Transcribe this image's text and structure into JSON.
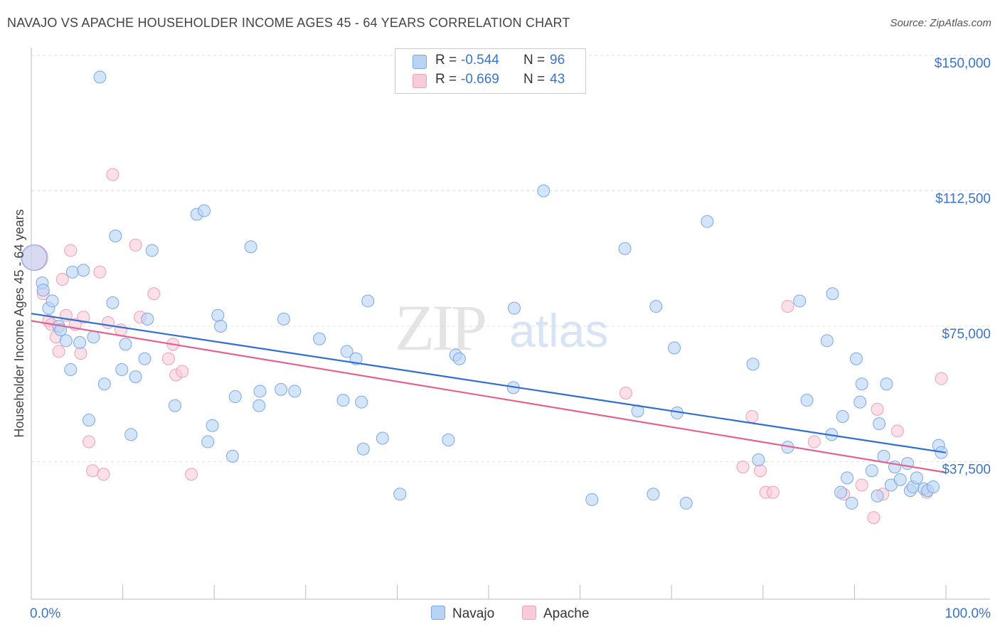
{
  "header": {
    "title": "NAVAJO VS APACHE HOUSEHOLDER INCOME AGES 45 - 64 YEARS CORRELATION CHART",
    "source": "Source: ZipAtlas.com"
  },
  "legend": {
    "rows": [
      {
        "r_label": "R =",
        "r_value": "-0.544",
        "n_label": "N =",
        "n_value": "96",
        "color": "#6fa3e8"
      },
      {
        "r_label": "R =",
        "r_value": "-0.669",
        "n_label": "N =",
        "n_value": "43",
        "color": "#f19bb7"
      }
    ]
  },
  "colors": {
    "navajo_fill": "#b9d3f5",
    "navajo_stroke": "#7aa8e6",
    "navajo_line": "#2f6fd0",
    "apache_fill": "#f9cbd9",
    "apache_stroke": "#ee9fb9",
    "apache_line": "#e4628f",
    "axis_text": "#3a74c9",
    "grid": "#e1e1e1"
  },
  "chart_data": {
    "type": "scatter",
    "title": "NAVAJO VS APACHE HOUSEHOLDER INCOME AGES 45 - 64 YEARS CORRELATION CHART",
    "xlabel": "",
    "ylabel": "Householder Income Ages 45 - 64 years",
    "x_tick_labels": [
      "0.0%",
      "100.0%"
    ],
    "y_tick_labels": [
      "$37,500",
      "$75,000",
      "$112,500",
      "$150,000"
    ],
    "y_ticks": [
      37500,
      75000,
      112500,
      150000
    ],
    "xlim": [
      0,
      100
    ],
    "ylim": [
      0,
      152000
    ],
    "grid": true,
    "legend_position": "top-center",
    "watermark": "ZIPatlas",
    "series": [
      {
        "name": "Navajo",
        "trend": {
          "x": [
            0,
            100
          ],
          "y": [
            78500,
            40000
          ]
        },
        "points": [
          [
            0.3,
            94000
          ],
          [
            1.2,
            87000
          ],
          [
            1.3,
            85000
          ],
          [
            1.9,
            80000
          ],
          [
            2.3,
            82000
          ],
          [
            3.0,
            75000
          ],
          [
            3.2,
            74000
          ],
          [
            3.8,
            71000
          ],
          [
            4.3,
            63000
          ],
          [
            4.5,
            90000
          ],
          [
            5.3,
            70500
          ],
          [
            5.7,
            90500
          ],
          [
            6.3,
            49000
          ],
          [
            6.8,
            72000
          ],
          [
            7.5,
            144000
          ],
          [
            8.0,
            59000
          ],
          [
            8.9,
            81500
          ],
          [
            9.2,
            100000
          ],
          [
            9.9,
            63000
          ],
          [
            10.3,
            70000
          ],
          [
            10.9,
            45000
          ],
          [
            11.4,
            61000
          ],
          [
            12.4,
            66000
          ],
          [
            12.7,
            77000
          ],
          [
            13.2,
            96000
          ],
          [
            15.7,
            53000
          ],
          [
            18.1,
            106000
          ],
          [
            18.9,
            107000
          ],
          [
            19.3,
            43000
          ],
          [
            19.8,
            47500
          ],
          [
            20.4,
            78000
          ],
          [
            20.7,
            75000
          ],
          [
            22.0,
            39000
          ],
          [
            22.3,
            55500
          ],
          [
            24.0,
            97000
          ],
          [
            24.9,
            53000
          ],
          [
            25.0,
            57000
          ],
          [
            27.3,
            57500
          ],
          [
            27.6,
            77000
          ],
          [
            28.8,
            57000
          ],
          [
            31.5,
            71500
          ],
          [
            34.1,
            54500
          ],
          [
            34.5,
            68000
          ],
          [
            35.5,
            66000
          ],
          [
            36.1,
            54000
          ],
          [
            36.3,
            41000
          ],
          [
            36.8,
            82000
          ],
          [
            38.4,
            44000
          ],
          [
            40.3,
            28500
          ],
          [
            45.6,
            43500
          ],
          [
            46.4,
            67000
          ],
          [
            46.8,
            66000
          ],
          [
            52.7,
            58000
          ],
          [
            52.8,
            80000
          ],
          [
            56.0,
            112500
          ],
          [
            61.3,
            27000
          ],
          [
            64.9,
            96500
          ],
          [
            66.3,
            51500
          ],
          [
            68.0,
            28500
          ],
          [
            68.3,
            80500
          ],
          [
            70.3,
            69000
          ],
          [
            70.6,
            51000
          ],
          [
            71.6,
            26000
          ],
          [
            73.9,
            104000
          ],
          [
            78.9,
            64500
          ],
          [
            79.5,
            38000
          ],
          [
            82.7,
            41500
          ],
          [
            84.0,
            82000
          ],
          [
            84.8,
            54500
          ],
          [
            87.0,
            71000
          ],
          [
            87.5,
            45000
          ],
          [
            87.6,
            84000
          ],
          [
            88.5,
            29000
          ],
          [
            88.7,
            50000
          ],
          [
            89.2,
            33000
          ],
          [
            89.7,
            26000
          ],
          [
            90.2,
            66000
          ],
          [
            90.6,
            54000
          ],
          [
            90.8,
            59000
          ],
          [
            91.9,
            35000
          ],
          [
            92.5,
            28000
          ],
          [
            92.7,
            48000
          ],
          [
            93.2,
            39000
          ],
          [
            93.5,
            59000
          ],
          [
            94.0,
            31000
          ],
          [
            94.4,
            36000
          ],
          [
            95.0,
            32500
          ],
          [
            95.8,
            37000
          ],
          [
            96.1,
            29500
          ],
          [
            96.4,
            30500
          ],
          [
            96.8,
            33000
          ],
          [
            97.6,
            30000
          ],
          [
            98.0,
            29500
          ],
          [
            98.6,
            30500
          ],
          [
            99.2,
            42000
          ],
          [
            99.5,
            40000
          ]
        ]
      },
      {
        "name": "Apache",
        "trend": {
          "x": [
            0,
            100
          ],
          "y": [
            76500,
            34500
          ]
        },
        "points": [
          [
            0.4,
            94000
          ],
          [
            1.3,
            84000
          ],
          [
            1.9,
            76500
          ],
          [
            2.2,
            75500
          ],
          [
            2.7,
            72000
          ],
          [
            3.0,
            68000
          ],
          [
            3.4,
            88000
          ],
          [
            3.8,
            78000
          ],
          [
            4.3,
            96000
          ],
          [
            4.8,
            75500
          ],
          [
            5.4,
            67500
          ],
          [
            5.7,
            77500
          ],
          [
            6.3,
            43000
          ],
          [
            6.7,
            35000
          ],
          [
            7.5,
            90000
          ],
          [
            7.9,
            34000
          ],
          [
            8.4,
            76000
          ],
          [
            8.9,
            117000
          ],
          [
            9.8,
            74000
          ],
          [
            11.4,
            97500
          ],
          [
            11.9,
            77500
          ],
          [
            13.4,
            84000
          ],
          [
            15.0,
            66000
          ],
          [
            15.5,
            70000
          ],
          [
            15.8,
            61500
          ],
          [
            16.5,
            62500
          ],
          [
            17.5,
            34000
          ],
          [
            65.0,
            56500
          ],
          [
            77.8,
            36000
          ],
          [
            78.8,
            50000
          ],
          [
            79.7,
            35000
          ],
          [
            80.3,
            29000
          ],
          [
            81.1,
            29000
          ],
          [
            82.7,
            80500
          ],
          [
            85.6,
            43000
          ],
          [
            88.8,
            28500
          ],
          [
            90.8,
            31000
          ],
          [
            92.1,
            22000
          ],
          [
            92.5,
            52000
          ],
          [
            93.1,
            28500
          ],
          [
            94.7,
            46000
          ],
          [
            97.9,
            29000
          ],
          [
            99.5,
            60500
          ]
        ]
      }
    ]
  },
  "bottom_legend": {
    "items": [
      {
        "label": "Navajo"
      },
      {
        "label": "Apache"
      }
    ]
  }
}
